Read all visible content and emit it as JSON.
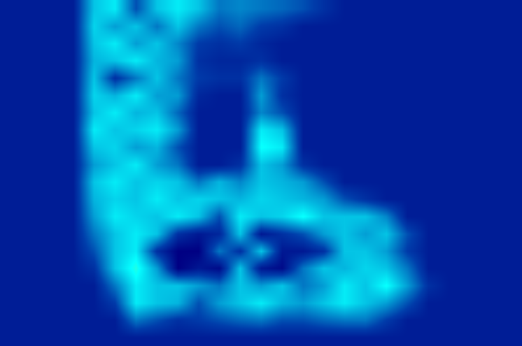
{
  "chart_data": {
    "type": "heatmap",
    "color": "Jet",
    "zlim": [
      0,
      1
    ],
    "tick_labels": false,
    "grid": false,
    "cells": [
      [
        0.06,
        0.06,
        0.06,
        0.06,
        0.3,
        0.35,
        0.15,
        0.3,
        0.35,
        0.3,
        0.2,
        0.22,
        0.2,
        0.18,
        0.15,
        0.1,
        0.06,
        0.06,
        0.06,
        0.06,
        0.06,
        0.06,
        0.06,
        0.06,
        0.06
      ],
      [
        0.06,
        0.06,
        0.06,
        0.06,
        0.32,
        0.25,
        0.3,
        0.2,
        0.3,
        0.2,
        0.15,
        0.18,
        0.12,
        0.1,
        0.06,
        0.06,
        0.06,
        0.06,
        0.06,
        0.06,
        0.06,
        0.06,
        0.06,
        0.06,
        0.06
      ],
      [
        0.06,
        0.06,
        0.06,
        0.06,
        0.3,
        0.35,
        0.25,
        0.3,
        0.22,
        0.12,
        0.1,
        0.12,
        0.08,
        0.06,
        0.06,
        0.06,
        0.06,
        0.06,
        0.06,
        0.06,
        0.06,
        0.06,
        0.06,
        0.06,
        0.06
      ],
      [
        0.06,
        0.06,
        0.06,
        0.06,
        0.28,
        0.3,
        0.35,
        0.28,
        0.25,
        0.1,
        0.08,
        0.08,
        0.1,
        0.06,
        0.06,
        0.06,
        0.06,
        0.06,
        0.06,
        0.06,
        0.06,
        0.06,
        0.06,
        0.06,
        0.06
      ],
      [
        0.06,
        0.06,
        0.06,
        0.06,
        0.3,
        0.1,
        0.2,
        0.3,
        0.2,
        0.12,
        0.1,
        0.1,
        0.2,
        0.12,
        0.06,
        0.06,
        0.06,
        0.06,
        0.06,
        0.06,
        0.06,
        0.06,
        0.06,
        0.06,
        0.06
      ],
      [
        0.06,
        0.06,
        0.06,
        0.06,
        0.32,
        0.28,
        0.35,
        0.25,
        0.25,
        0.08,
        0.06,
        0.06,
        0.25,
        0.1,
        0.06,
        0.06,
        0.06,
        0.06,
        0.06,
        0.06,
        0.06,
        0.06,
        0.06,
        0.06,
        0.06
      ],
      [
        0.06,
        0.06,
        0.06,
        0.06,
        0.3,
        0.35,
        0.28,
        0.3,
        0.18,
        0.06,
        0.06,
        0.06,
        0.22,
        0.15,
        0.06,
        0.06,
        0.06,
        0.06,
        0.06,
        0.06,
        0.06,
        0.06,
        0.06,
        0.06,
        0.06
      ],
      [
        0.06,
        0.06,
        0.06,
        0.06,
        0.35,
        0.3,
        0.32,
        0.35,
        0.25,
        0.06,
        0.06,
        0.06,
        0.35,
        0.3,
        0.06,
        0.06,
        0.06,
        0.06,
        0.06,
        0.06,
        0.06,
        0.06,
        0.06,
        0.06,
        0.06
      ],
      [
        0.06,
        0.06,
        0.06,
        0.06,
        0.3,
        0.32,
        0.25,
        0.28,
        0.15,
        0.06,
        0.06,
        0.06,
        0.38,
        0.35,
        0.06,
        0.06,
        0.06,
        0.06,
        0.06,
        0.06,
        0.06,
        0.06,
        0.06,
        0.06,
        0.06
      ],
      [
        0.06,
        0.06,
        0.06,
        0.06,
        0.25,
        0.3,
        0.35,
        0.25,
        0.2,
        0.06,
        0.06,
        0.1,
        0.3,
        0.25,
        0.1,
        0.06,
        0.06,
        0.06,
        0.06,
        0.06,
        0.06,
        0.06,
        0.06,
        0.06,
        0.06
      ],
      [
        0.06,
        0.06,
        0.06,
        0.06,
        0.3,
        0.35,
        0.3,
        0.32,
        0.3,
        0.2,
        0.28,
        0.22,
        0.3,
        0.28,
        0.25,
        0.15,
        0.06,
        0.06,
        0.06,
        0.06,
        0.06,
        0.06,
        0.06,
        0.06,
        0.06
      ],
      [
        0.06,
        0.06,
        0.06,
        0.06,
        0.28,
        0.32,
        0.3,
        0.35,
        0.3,
        0.32,
        0.3,
        0.28,
        0.32,
        0.3,
        0.28,
        0.25,
        0.15,
        0.1,
        0.06,
        0.06,
        0.06,
        0.06,
        0.06,
        0.06,
        0.06
      ],
      [
        0.06,
        0.06,
        0.06,
        0.06,
        0.25,
        0.35,
        0.32,
        0.3,
        0.35,
        0.3,
        0.15,
        0.35,
        0.3,
        0.32,
        0.38,
        0.3,
        0.3,
        0.3,
        0.22,
        0.06,
        0.06,
        0.06,
        0.06,
        0.06,
        0.06
      ],
      [
        0.06,
        0.06,
        0.06,
        0.06,
        0.2,
        0.3,
        0.35,
        0.3,
        0.1,
        0.05,
        0.08,
        0.3,
        0.05,
        0.1,
        0.15,
        0.25,
        0.3,
        0.25,
        0.3,
        0.15,
        0.06,
        0.06,
        0.06,
        0.06,
        0.06
      ],
      [
        0.06,
        0.06,
        0.06,
        0.06,
        0.15,
        0.3,
        0.35,
        0.1,
        0.0,
        0.0,
        0.2,
        0.1,
        0.3,
        0.05,
        0.05,
        0.1,
        0.3,
        0.3,
        0.25,
        0.12,
        0.06,
        0.06,
        0.06,
        0.06,
        0.06
      ],
      [
        0.06,
        0.06,
        0.06,
        0.06,
        0.1,
        0.3,
        0.4,
        0.25,
        0.0,
        0.05,
        0.02,
        0.3,
        0.05,
        0.02,
        0.2,
        0.3,
        0.28,
        0.32,
        0.3,
        0.2,
        0.06,
        0.06,
        0.06,
        0.06,
        0.06
      ],
      [
        0.06,
        0.06,
        0.06,
        0.06,
        0.06,
        0.2,
        0.35,
        0.3,
        0.3,
        0.25,
        0.2,
        0.3,
        0.25,
        0.3,
        0.2,
        0.25,
        0.35,
        0.3,
        0.38,
        0.25,
        0.1,
        0.06,
        0.06,
        0.06,
        0.06
      ],
      [
        0.06,
        0.06,
        0.06,
        0.06,
        0.06,
        0.12,
        0.35,
        0.3,
        0.28,
        0.15,
        0.25,
        0.3,
        0.35,
        0.28,
        0.25,
        0.3,
        0.35,
        0.3,
        0.25,
        0.15,
        0.06,
        0.06,
        0.06,
        0.06,
        0.06
      ],
      [
        0.06,
        0.06,
        0.06,
        0.06,
        0.06,
        0.06,
        0.2,
        0.15,
        0.1,
        0.12,
        0.15,
        0.18,
        0.2,
        0.15,
        0.15,
        0.18,
        0.2,
        0.2,
        0.12,
        0.06,
        0.06,
        0.06,
        0.06,
        0.06,
        0.06
      ],
      [
        0.06,
        0.06,
        0.06,
        0.06,
        0.06,
        0.06,
        0.06,
        0.06,
        0.06,
        0.06,
        0.06,
        0.06,
        0.06,
        0.06,
        0.06,
        0.06,
        0.06,
        0.06,
        0.06,
        0.06,
        0.06,
        0.06,
        0.06,
        0.06,
        0.06
      ]
    ]
  }
}
